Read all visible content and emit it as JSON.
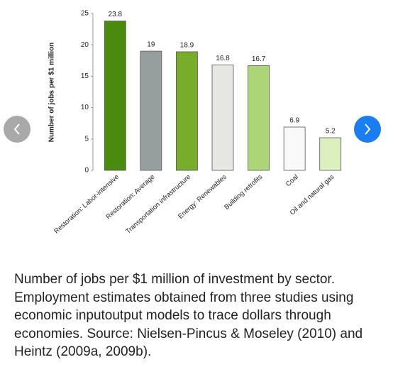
{
  "chart_data": {
    "type": "bar",
    "y_label": "Number of jobs per $1 million",
    "categories": [
      "Restoration: Labor-intensive",
      "Restoration: Average",
      "Transportation infrastructure",
      "Energy: Renewables",
      "Building retrofits",
      "Coal",
      "Oil and natural gas"
    ],
    "values": [
      23.8,
      19,
      18.9,
      16.8,
      16.7,
      6.9,
      5.2
    ],
    "colors": [
      "#4a8a0e",
      "#979e9e",
      "#78ad2c",
      "#e6e6e3",
      "#acd578",
      "#f9f9f9",
      "#dcefbf"
    ],
    "ylim": [
      0,
      25
    ],
    "yticks": [
      0,
      5,
      10,
      15,
      20,
      25
    ],
    "grid": false,
    "show_values": true
  },
  "caption": "Number of jobs per $1 million of investment by sector. Employment estimates obtained from three studies using economic inputoutput models to trace dollars through economies. Source: Nielsen-Pincus & Moseley (2010) and Heintz (2009a, 2009b)."
}
